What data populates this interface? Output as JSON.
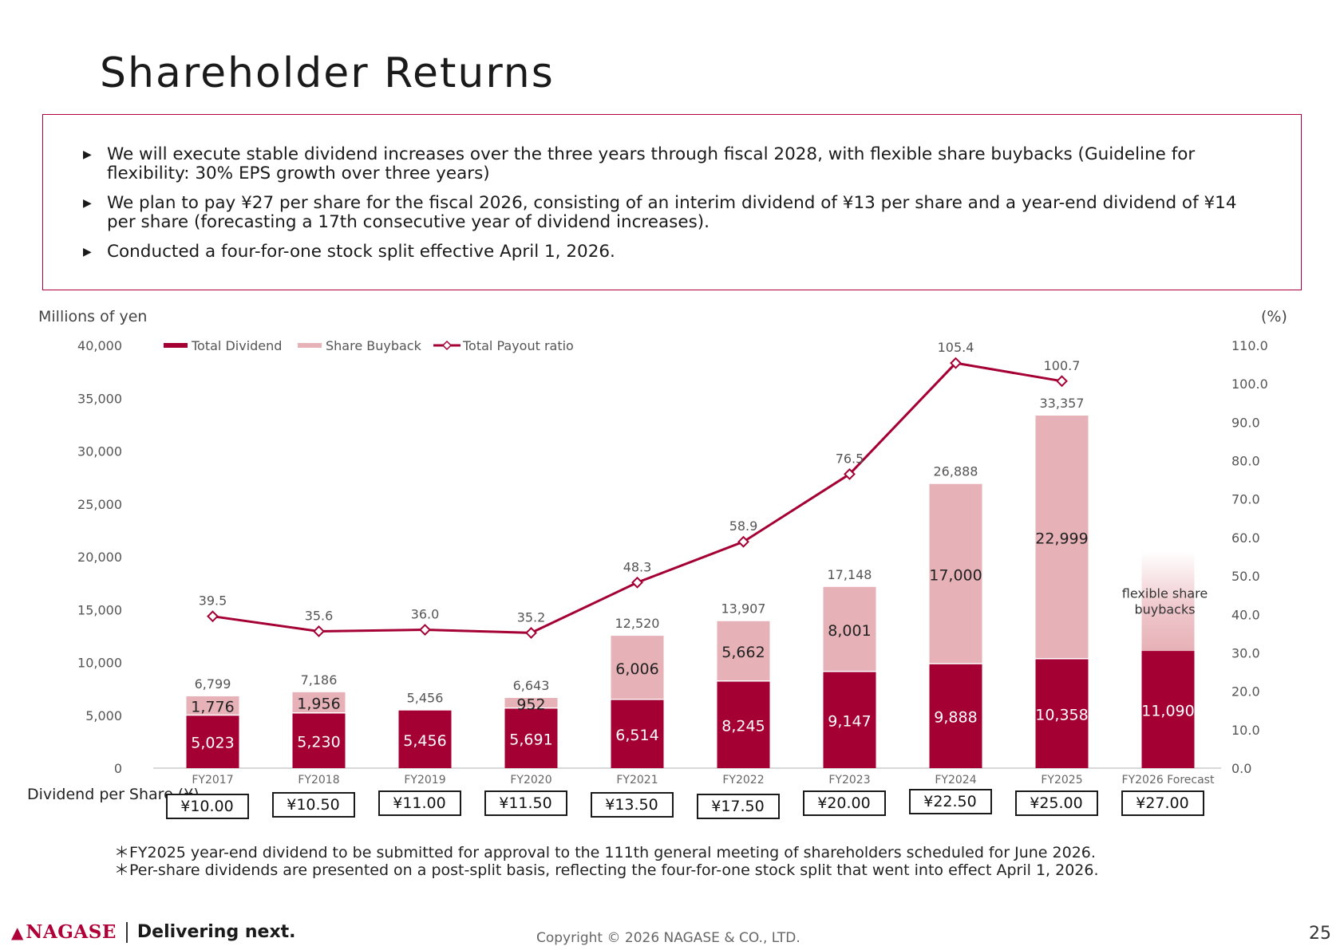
{
  "page": {
    "title": "Shareholder Returns",
    "bullets": [
      "We will execute stable dividend increases over the three years through fiscal 2028, with flexible share buybacks (Guideline for flexibility: 30% EPS growth over three years)",
      "We plan to pay ¥27 per share for the fiscal 2026, consisting of an interim dividend of ¥13 per share and a year-end dividend of ¥14 per share (forecasting a 17th consecutive year of dividend increases).",
      "Conducted a four-for-one stock split effective April 1, 2026."
    ],
    "bullet_icon": "triangle-right-icon",
    "dps_label": "Dividend per Share (¥)",
    "dps_values": [
      "¥10.00",
      "¥10.50",
      "¥11.00",
      "¥11.50",
      "¥13.50",
      "¥17.50",
      "¥20.00",
      "¥22.50",
      "¥25.00",
      "¥27.00"
    ],
    "notes": [
      "＊FY2025 year-end dividend to be submitted for approval to the 111th general meeting of shareholders scheduled for June 2026.",
      "＊Per-share dividends are presented on a post-split basis, reflecting the four-for-one stock split that went into effect April 1, 2026."
    ],
    "footer": {
      "logo": "NAGASE",
      "tagline": "Delivering next.",
      "copyright": "Copyright © 2026 NAGASE & CO., LTD.",
      "page_number": "25"
    }
  },
  "chart_data": {
    "type": "bar",
    "stacked": true,
    "categories": [
      "FY2017",
      "FY2018",
      "FY2019",
      "FY2020",
      "FY2021",
      "FY2022",
      "FY2023",
      "FY2024",
      "FY2025",
      "FY2026 Forecast"
    ],
    "ylabel": "Millions of yen",
    "y2label": "(%)",
    "ylim": [
      0,
      40000
    ],
    "yticks": [
      0,
      5000,
      10000,
      15000,
      20000,
      25000,
      30000,
      35000,
      40000
    ],
    "y2lim": [
      0,
      110
    ],
    "y2ticks": [
      0,
      10,
      20,
      30,
      40,
      50,
      60,
      70,
      80,
      90,
      100,
      110
    ],
    "legend_position": "top-left",
    "series": [
      {
        "name": "Total Dividend",
        "kind": "bar",
        "color": "#a50034",
        "values": [
          5023,
          5230,
          5456,
          5691,
          6514,
          8245,
          9147,
          9888,
          10358,
          11090
        ]
      },
      {
        "name": "Share Buyback",
        "kind": "bar",
        "color": "#e6b1b7",
        "values": [
          1776,
          1956,
          0,
          952,
          6006,
          5662,
          8001,
          17000,
          22999,
          null
        ]
      },
      {
        "name": "Total Payout ratio",
        "kind": "line",
        "axis": "right",
        "color": "#a50034",
        "values": [
          39.5,
          35.6,
          36.0,
          35.2,
          48.3,
          58.9,
          76.5,
          105.4,
          100.7,
          null
        ]
      }
    ],
    "totals": [
      6799,
      7186,
      5456,
      6643,
      12520,
      13907,
      17148,
      26888,
      33357,
      null
    ],
    "forecast_annotation": "flexible share buybacks",
    "colors": {
      "dividend": "#a50034",
      "buyback": "#e6b1b7",
      "line": "#a50034",
      "text": "#555555"
    }
  }
}
